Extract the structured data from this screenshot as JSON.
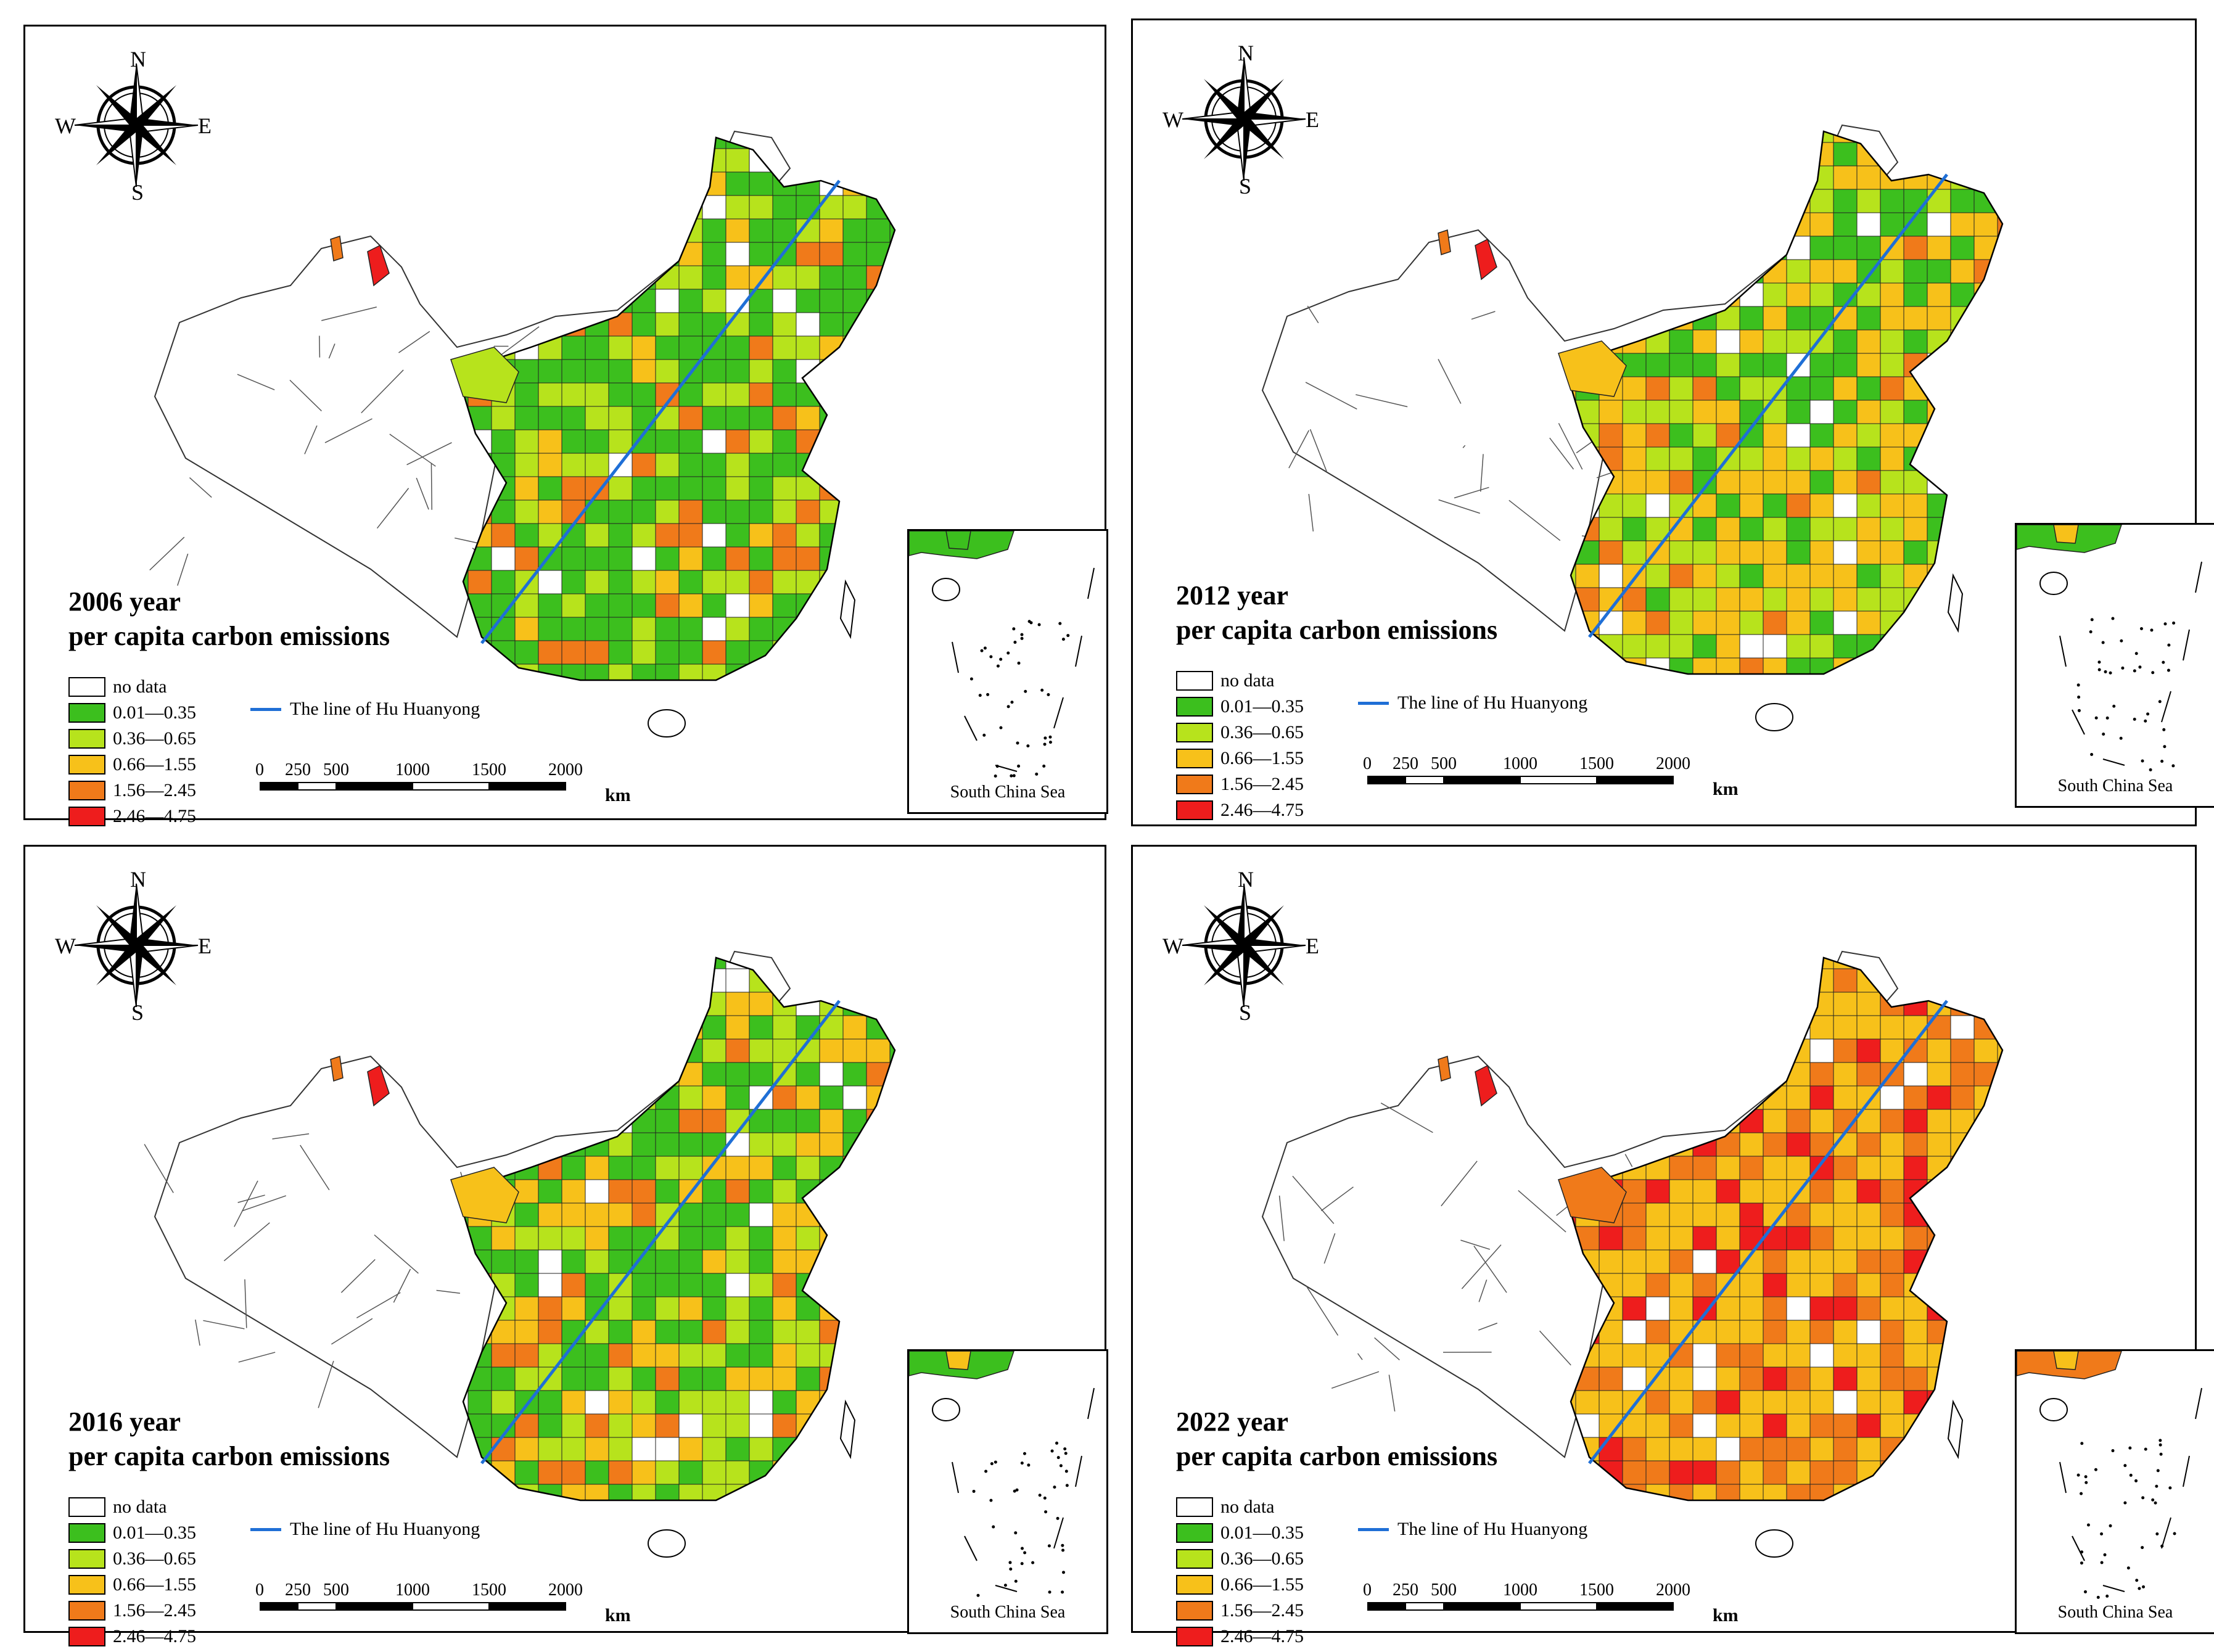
{
  "panels": [
    {
      "year_title": "2006 year",
      "subtitle": "per capita carbon emissions",
      "dominant": "green"
    },
    {
      "year_title": "2012 year",
      "subtitle": "per capita carbon emissions",
      "dominant": "mixed"
    },
    {
      "year_title": "2016 year",
      "subtitle": "per capita carbon emissions",
      "dominant": "mixed2"
    },
    {
      "year_title": "2022 year",
      "subtitle": "per capita carbon emissions",
      "dominant": "orange"
    }
  ],
  "compass": {
    "n": "N",
    "s": "S",
    "e": "E",
    "w": "W"
  },
  "legend": [
    {
      "label": "no data",
      "color": "#ffffff"
    },
    {
      "label": "0.01—0.35",
      "color": "#3cbf1e"
    },
    {
      "label": "0.36—0.65",
      "color": "#b7e31c"
    },
    {
      "label": "0.66—1.55",
      "color": "#f7c11a"
    },
    {
      "label": "1.56—2.45",
      "color": "#f07a1a"
    },
    {
      "label": "2.46—4.75",
      "color": "#ee1d1d"
    }
  ],
  "hu_line": {
    "label": "The line of Hu Huanyong",
    "color": "#1f6fd6"
  },
  "scale": {
    "ticks": [
      "0",
      "250",
      "500",
      "1000",
      "1500",
      "2000"
    ],
    "unit": "km"
  },
  "inset_label": "South China Sea"
}
